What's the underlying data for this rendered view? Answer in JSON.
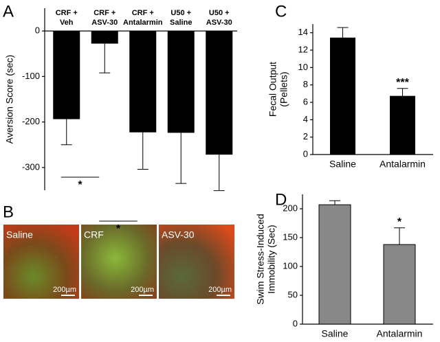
{
  "chart_data": [
    {
      "panel": "A",
      "type": "bar",
      "ylabel": [
        "Aversion Score (sec)"
      ],
      "categories": [
        [
          "CRF +",
          "Veh"
        ],
        [
          "CRF +",
          "ASV-30"
        ],
        [
          "CRF +",
          "Antalarmin"
        ],
        [
          "U50 +",
          "Saline"
        ],
        [
          "U50 +",
          "ASV-30"
        ]
      ],
      "values": [
        -193,
        -27,
        -222,
        -223,
        -271
      ],
      "errors": [
        57,
        65,
        82,
        112,
        80
      ],
      "color": "#000000",
      "ylim": [
        -350,
        50
      ],
      "yticks": [
        -300,
        -200,
        -100,
        0
      ],
      "annotations": [
        "*",
        "*"
      ]
    },
    {
      "panel": "C",
      "type": "bar",
      "ylabel": [
        "Fecal  Output",
        "(Pellets)"
      ],
      "categories": [
        "Saline",
        "Antalarmin"
      ],
      "values": [
        13.4,
        6.7
      ],
      "errors": [
        1.2,
        0.9
      ],
      "color": "#000000",
      "ylim": [
        0,
        15
      ],
      "yticks": [
        0,
        2,
        4,
        6,
        8,
        10,
        12,
        14
      ],
      "annotations": [
        null,
        "***"
      ]
    },
    {
      "panel": "D",
      "type": "bar",
      "ylabel": [
        "Swim Stress-Induced",
        "Immobility (Sec)"
      ],
      "categories": [
        "Saline",
        "Antalarmin"
      ],
      "values": [
        207,
        138
      ],
      "errors": [
        7,
        29
      ],
      "color": "#888888",
      "ylim": [
        0,
        225
      ],
      "yticks": [
        0,
        50,
        100,
        150,
        200
      ],
      "annotations": [
        null,
        "*"
      ]
    }
  ],
  "figure_b": {
    "panel": "B",
    "images": [
      {
        "label": "Saline",
        "scale": "200µm"
      },
      {
        "label": "CRF",
        "scale": "200µm"
      },
      {
        "label": "ASV-30",
        "scale": "200µm"
      }
    ]
  }
}
